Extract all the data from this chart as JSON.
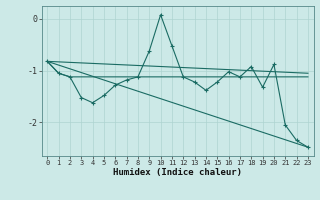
{
  "xlabel": "Humidex (Indice chaleur)",
  "bg_color": "#cce9e7",
  "line_color": "#1a6b63",
  "grid_color": "#aed4d1",
  "xlim": [
    -0.5,
    23.5
  ],
  "ylim": [
    -2.65,
    0.25
  ],
  "yticks": [
    0,
    -1,
    -2
  ],
  "xticks": [
    0,
    1,
    2,
    3,
    4,
    5,
    6,
    7,
    8,
    9,
    10,
    11,
    12,
    13,
    14,
    15,
    16,
    17,
    18,
    19,
    20,
    21,
    22,
    23
  ],
  "line1_x": [
    0,
    1,
    2,
    3,
    4,
    5,
    6,
    7,
    8,
    9,
    10,
    11,
    12,
    13,
    14,
    15,
    16,
    17,
    18,
    19,
    20,
    21,
    22,
    23
  ],
  "line1_y": [
    -0.82,
    -1.05,
    -1.12,
    -1.52,
    -1.62,
    -1.48,
    -1.28,
    -1.18,
    -1.12,
    -0.62,
    0.08,
    -0.52,
    -1.12,
    -1.22,
    -1.38,
    -1.22,
    -1.02,
    -1.12,
    -0.92,
    -1.32,
    -0.88,
    -2.05,
    -2.35,
    -2.48
  ],
  "line2_x": [
    0,
    23
  ],
  "line2_y": [
    -0.82,
    -1.05
  ],
  "line3_x": [
    0,
    1,
    2,
    3,
    4,
    5,
    6,
    7,
    8,
    9,
    10,
    11,
    12,
    13,
    14,
    15,
    16,
    17,
    18,
    19,
    20,
    21,
    22,
    23
  ],
  "line3_y": [
    -0.82,
    -1.05,
    -1.12,
    -1.12,
    -1.12,
    -1.12,
    -1.12,
    -1.12,
    -1.12,
    -1.12,
    -1.12,
    -1.12,
    -1.12,
    -1.12,
    -1.12,
    -1.12,
    -1.12,
    -1.12,
    -1.12,
    -1.12,
    -1.12,
    -1.12,
    -1.12,
    -1.12
  ],
  "line4_x": [
    0,
    23
  ],
  "line4_y": [
    -0.82,
    -2.48
  ]
}
